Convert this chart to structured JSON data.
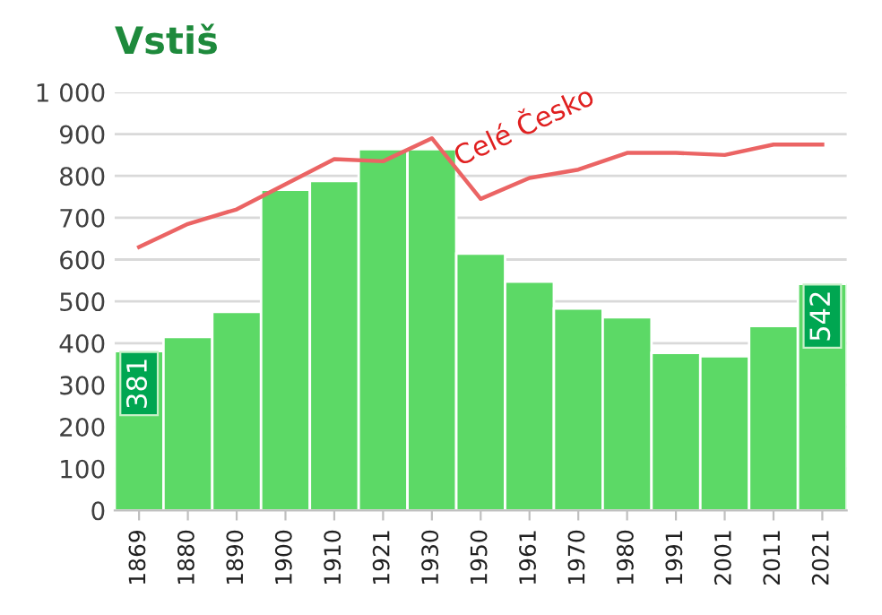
{
  "chart_data": {
    "type": "bar",
    "title": "Vstiš",
    "categories": [
      "1869",
      "1880",
      "1890",
      "1900",
      "1910",
      "1921",
      "1930",
      "1950",
      "1961",
      "1970",
      "1980",
      "1991",
      "2001",
      "2011",
      "2021"
    ],
    "series": [
      {
        "color": "#5cd966",
        "values": [
          381,
          415,
          475,
          767,
          788,
          864,
          864,
          614,
          547,
          483,
          462,
          377,
          369,
          441,
          542
        ],
        "value_labels": [
          "381",
          null,
          null,
          null,
          null,
          null,
          null,
          null,
          null,
          null,
          null,
          null,
          null,
          null,
          "542"
        ]
      },
      {
        "type": "line",
        "name": "Celé Česko",
        "color": "#eb6464",
        "values": [
          630,
          685,
          720,
          780,
          840,
          835,
          890,
          745,
          795,
          815,
          855,
          855,
          850,
          875,
          875
        ]
      }
    ],
    "ylim": [
      0,
      1000
    ],
    "yticks": [
      0,
      100,
      200,
      300,
      400,
      500,
      600,
      700,
      800,
      900,
      {
        "value": 1000,
        "label": "1 000"
      }
    ],
    "grid": "y",
    "legend": false
  }
}
